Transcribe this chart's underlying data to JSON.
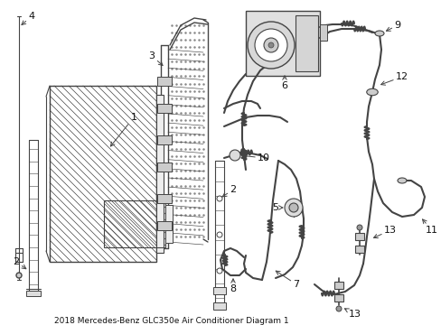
{
  "title": "2018 Mercedes-Benz GLC350e Air Conditioner Diagram 1",
  "bg_color": "#ffffff",
  "lc": "#444444",
  "figsize": [
    4.89,
    3.6
  ],
  "dpi": 100
}
